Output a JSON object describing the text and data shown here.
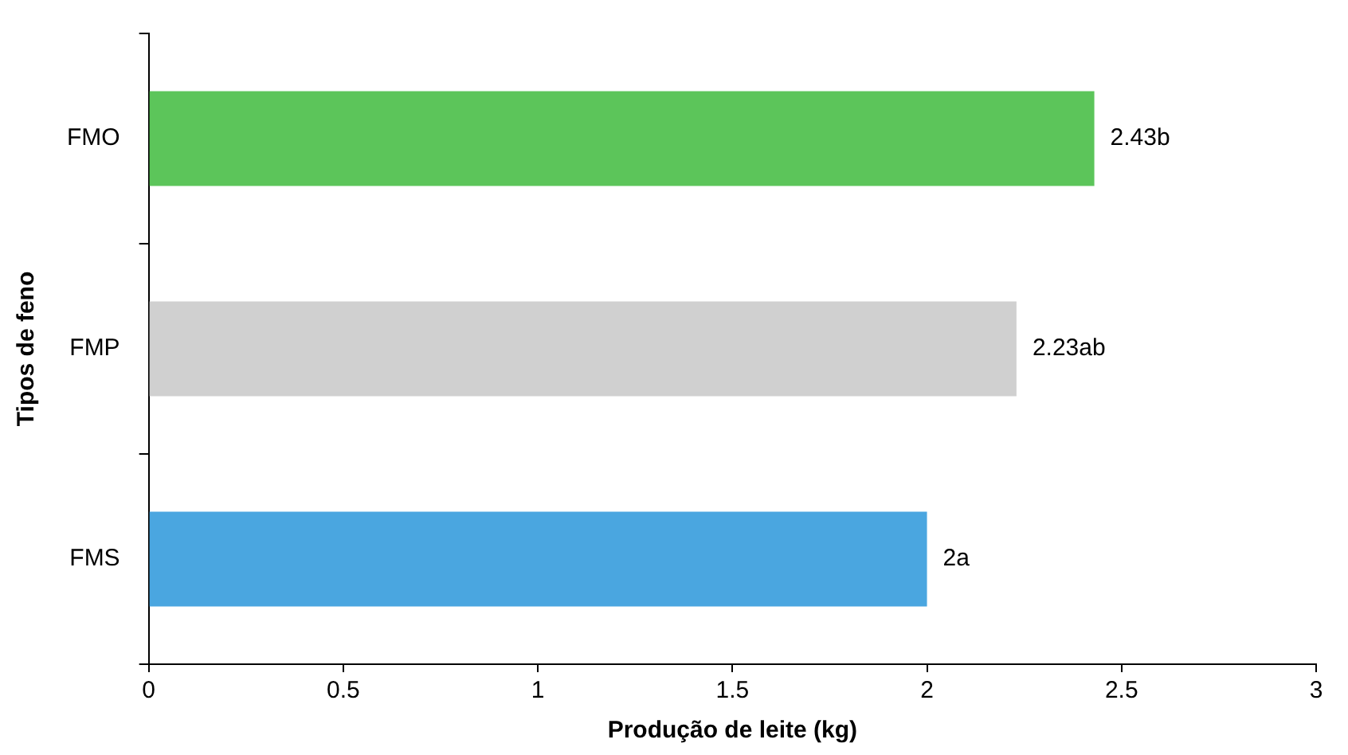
{
  "chart_data": {
    "type": "bar",
    "orientation": "horizontal",
    "xlabel": "Produção de leite (kg)",
    "ylabel": "Tipos de feno",
    "categories": [
      "FMO",
      "FMP",
      "FMS"
    ],
    "values": [
      2.43,
      2.23,
      2
    ],
    "colors": [
      "#5cc55a",
      "#d0d0d0",
      "#4aa6e0"
    ],
    "value_labels": [
      "2.43b",
      "2.23ab",
      "2a"
    ],
    "xlim": [
      0,
      3
    ],
    "xticks": [
      0,
      0.5,
      1,
      1.5,
      2,
      2.5,
      3
    ],
    "grid": false,
    "legend": false
  }
}
